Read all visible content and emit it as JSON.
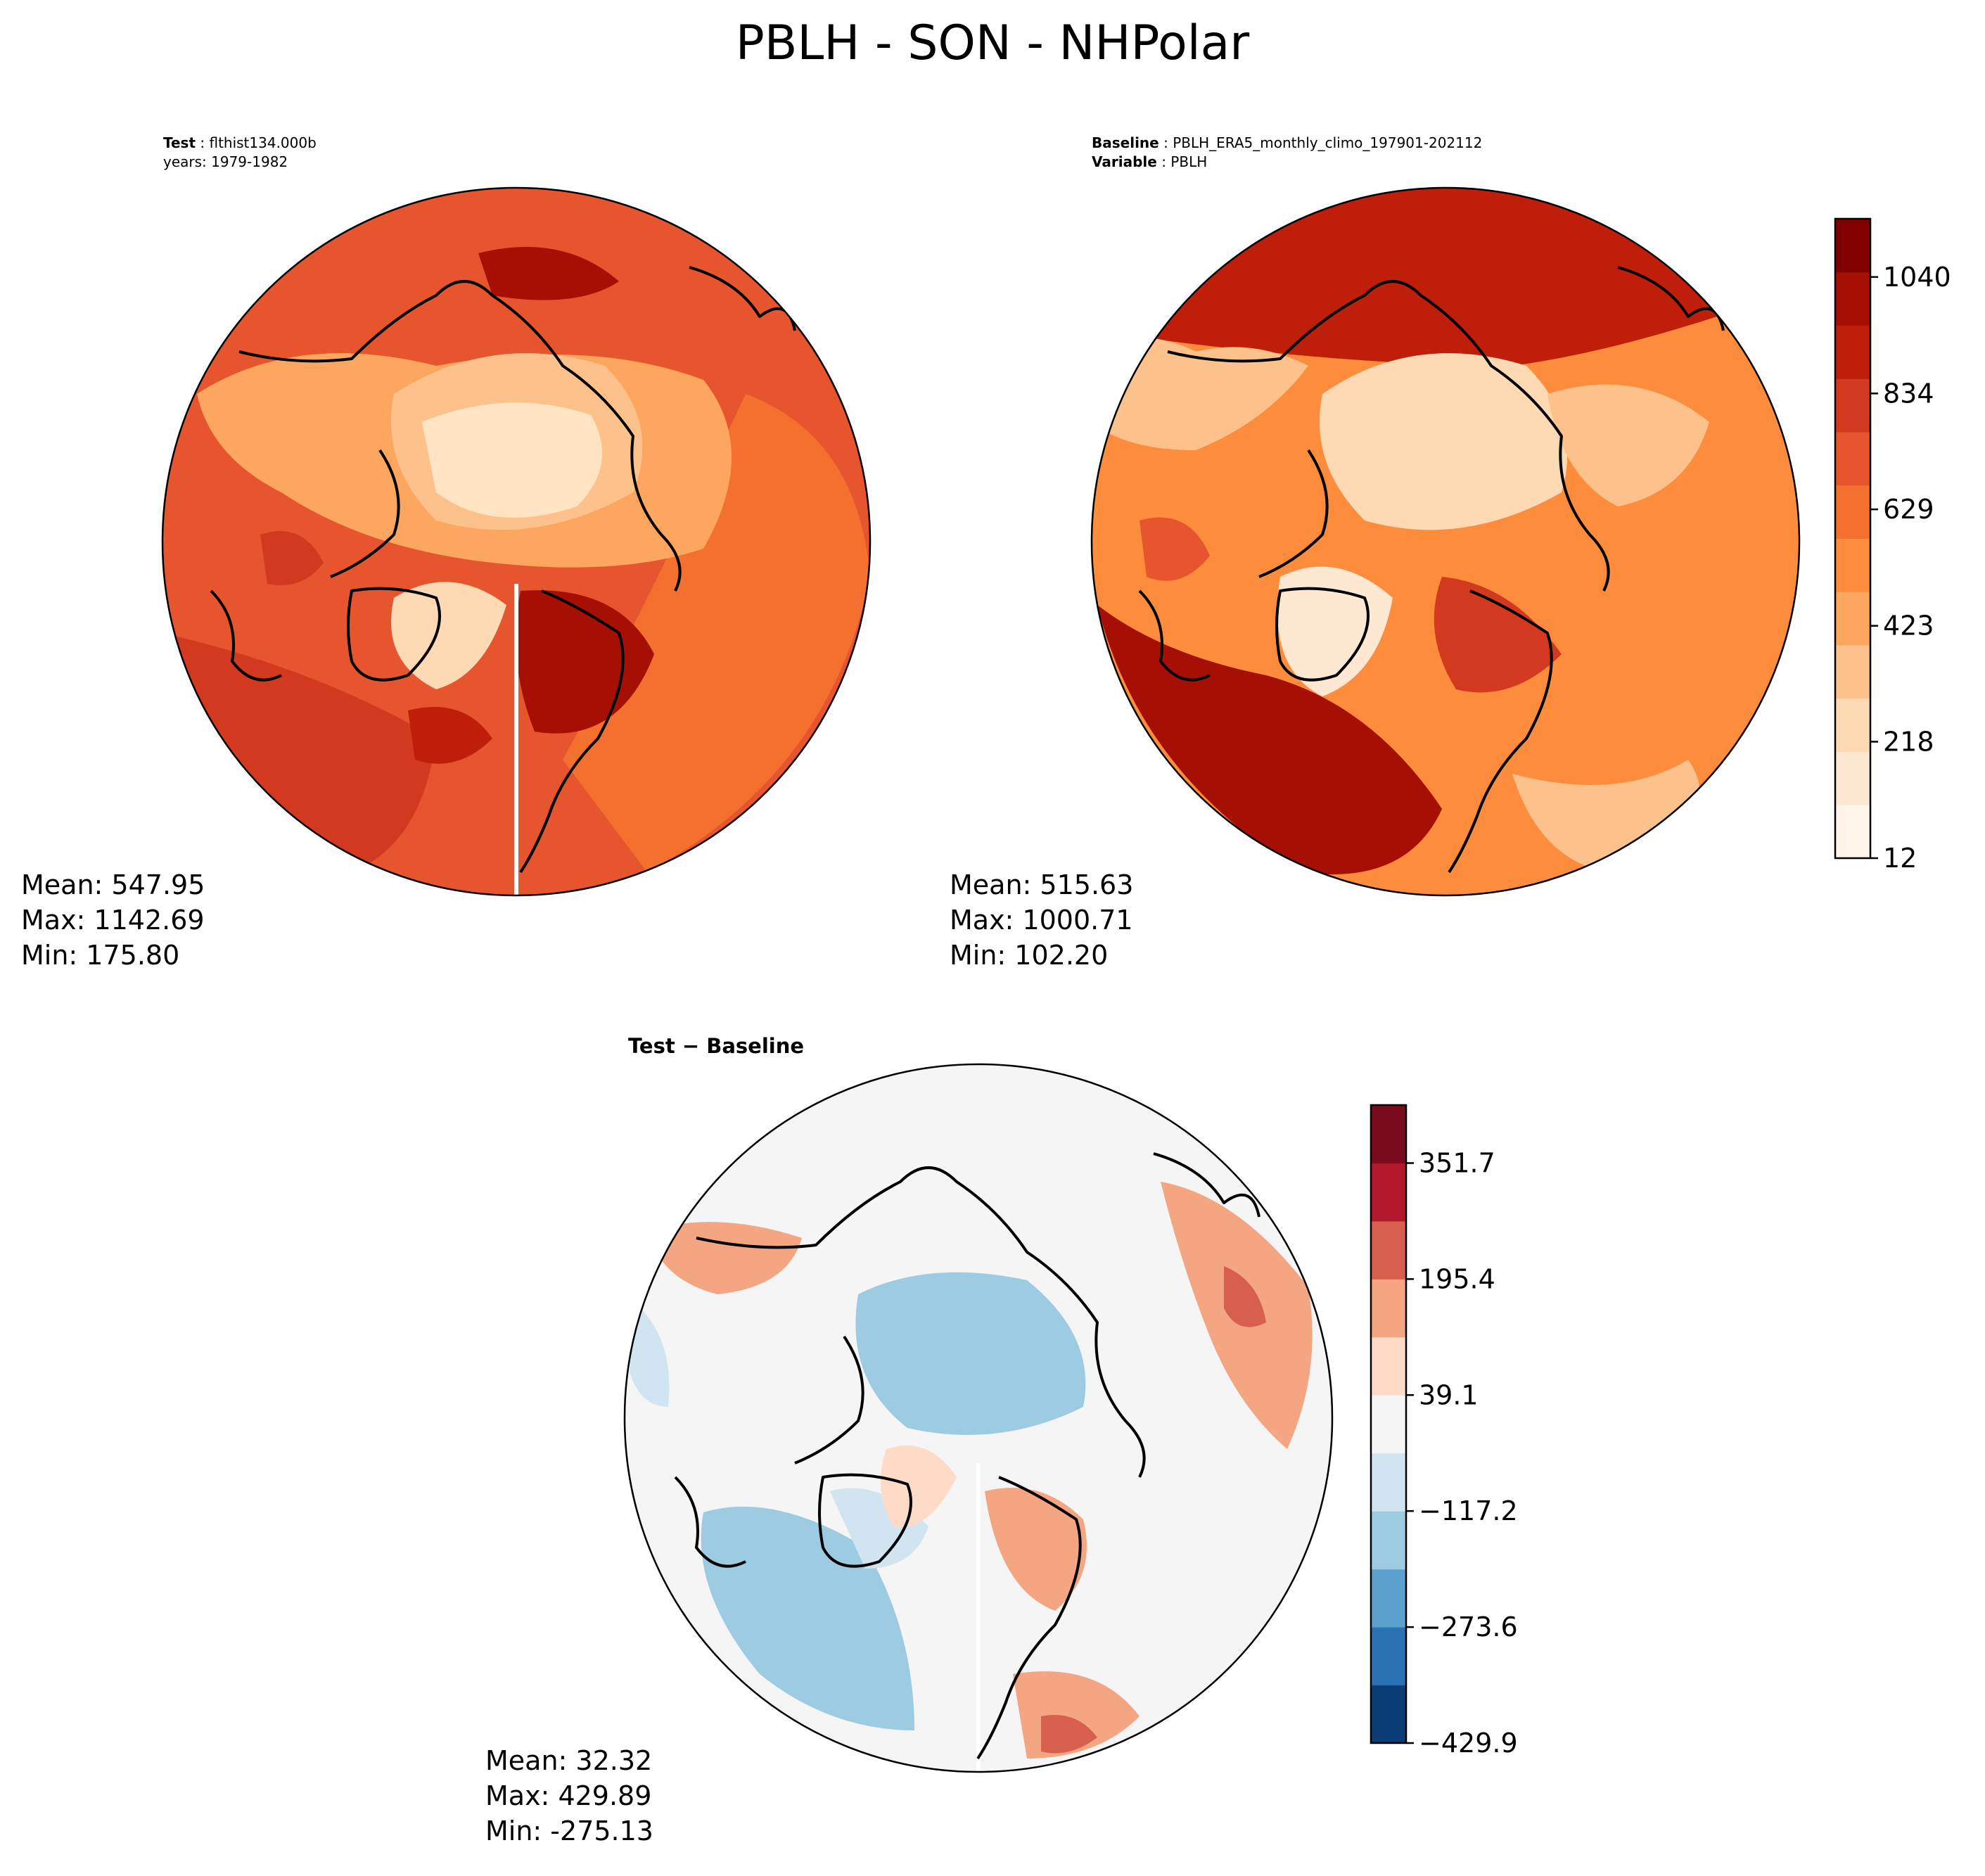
{
  "figure": {
    "title": "PBLH - SON - NHPolar"
  },
  "panels": {
    "test": {
      "header": [
        {
          "label": "Test",
          "value": "flthist134.000b"
        },
        {
          "label": "",
          "value": "years: 1979-1982"
        }
      ],
      "stats": {
        "mean": "Mean: 547.95",
        "max": "Max: 1142.69",
        "min": "Min: 175.80"
      }
    },
    "baseline": {
      "header": [
        {
          "label": "Baseline",
          "value": "PBLH_ERA5_monthly_climo_197901-202112"
        },
        {
          "label": "Variable",
          "value": "PBLH"
        }
      ],
      "stats": {
        "mean": "Mean: 515.63",
        "max": "Max: 1000.71",
        "min": "Min: 102.20"
      }
    },
    "diff": {
      "title": "Test − Baseline",
      "stats": {
        "mean": "Mean: 32.32",
        "max": "Max: 429.89",
        "min": "Min: -275.13"
      }
    }
  },
  "chart_data": [
    {
      "type": "heatmap",
      "projection": "north-polar-stereographic",
      "panel": "test",
      "field": "PBLH",
      "mean": 547.95,
      "max": 1142.69,
      "min": 175.8,
      "colormap": "Reds",
      "shares_colorbar_with": "baseline"
    },
    {
      "type": "heatmap",
      "projection": "north-polar-stereographic",
      "panel": "baseline",
      "field": "PBLH",
      "mean": 515.63,
      "max": 1000.71,
      "min": 102.2,
      "colormap": "Reds",
      "colorbar": {
        "range": [
          12,
          1143
        ],
        "ticks": [
          12,
          218,
          423,
          629,
          834,
          1040
        ],
        "tick_labels": [
          "12",
          "218",
          "423",
          "629",
          "834",
          "1040"
        ],
        "colors": [
          "#fff5eb",
          "#fee8d2",
          "#fdd9b4",
          "#fdc28c",
          "#fda660",
          "#fd8d3c",
          "#f4702f",
          "#e6552e",
          "#d3391f",
          "#bf1e0a",
          "#a50f04",
          "#800000"
        ]
      }
    },
    {
      "type": "heatmap",
      "projection": "north-polar-stereographic",
      "panel": "diff",
      "field": "PBLH difference",
      "mean": 32.32,
      "max": 429.89,
      "min": -275.13,
      "colormap": "RdBu_r",
      "colorbar": {
        "range": [
          -429.9,
          429.9
        ],
        "ticks": [
          -429.9,
          -273.6,
          -117.2,
          39.1,
          195.4,
          351.7
        ],
        "tick_labels": [
          "−429.9",
          "−273.6",
          "−117.2",
          "39.1",
          "195.4",
          "351.7"
        ],
        "colors": [
          "#0b3d77",
          "#2a71b2",
          "#5aa1cf",
          "#9ccbe2",
          "#d1e5f0",
          "#f5f5f5",
          "#fddbc7",
          "#f4a582",
          "#d6604d",
          "#b2182b",
          "#7a0b1f"
        ]
      }
    }
  ]
}
